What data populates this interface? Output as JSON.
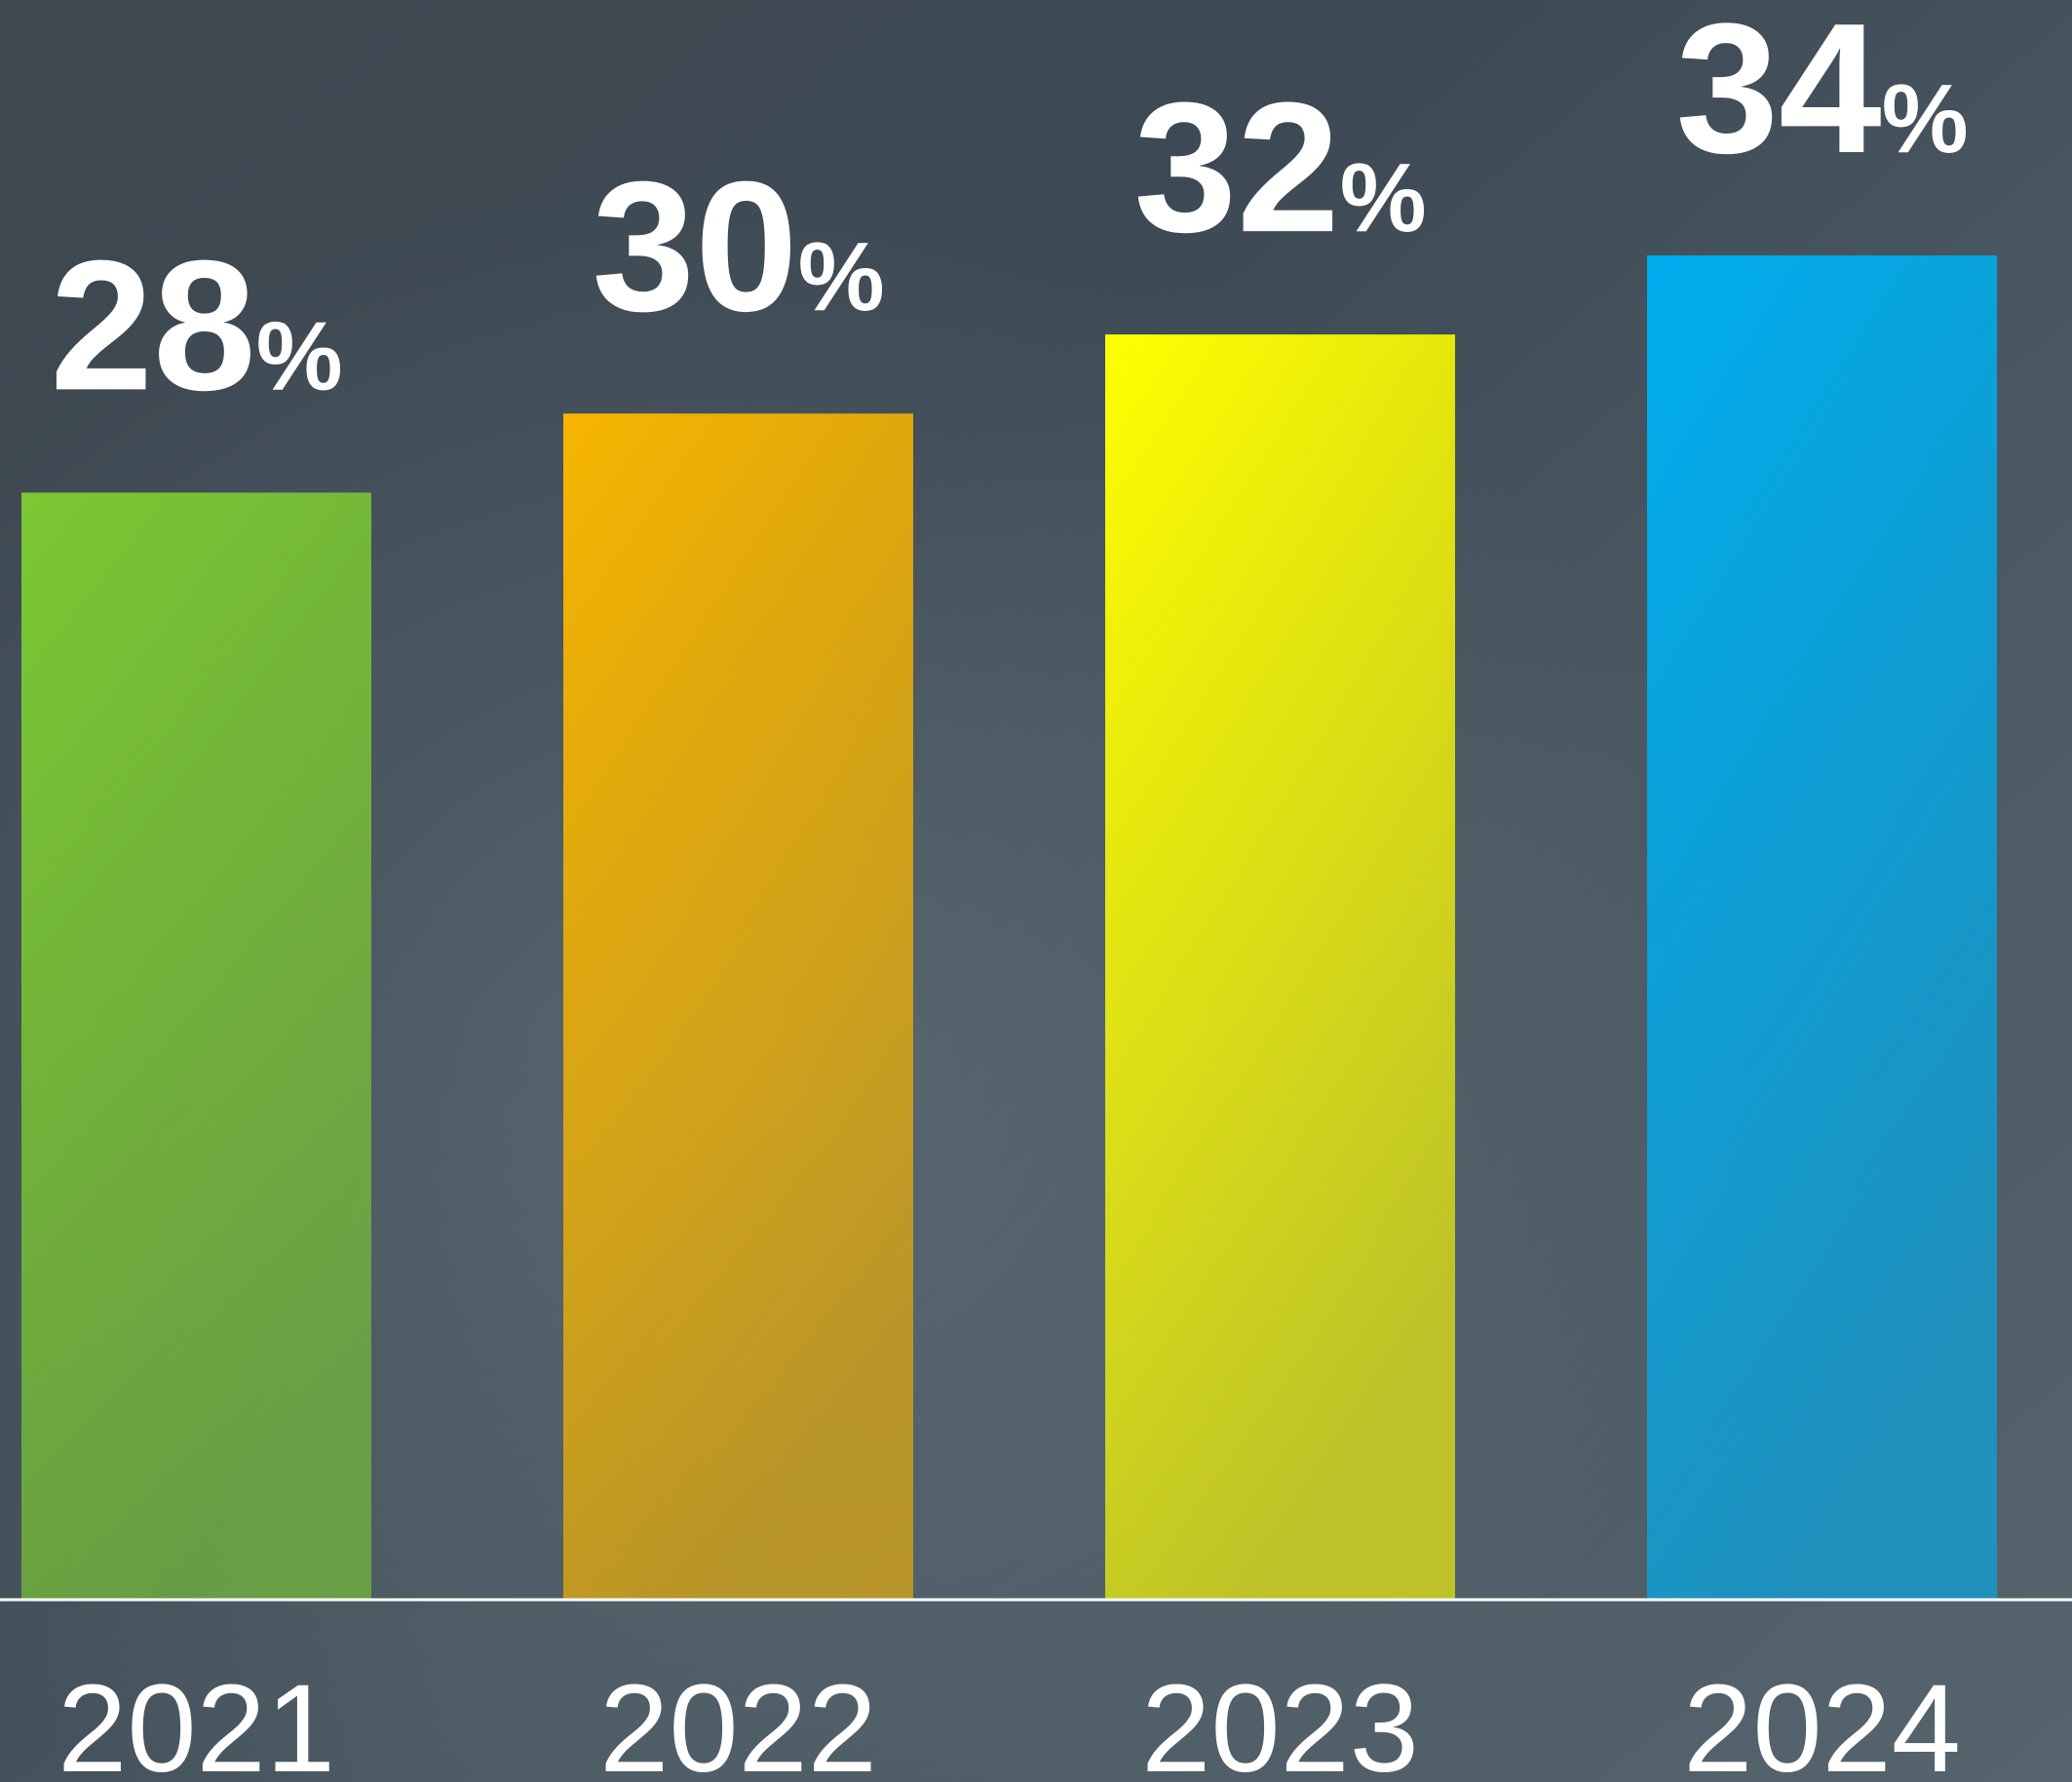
{
  "chart_data": {
    "type": "bar",
    "categories": [
      "2021",
      "2022",
      "2023",
      "2024"
    ],
    "values": [
      28,
      30,
      32,
      34
    ],
    "value_labels": [
      "28%",
      "30%",
      "32%",
      "34%"
    ],
    "colors": [
      "#7cc832",
      "#f7b500",
      "#ffff00",
      "#00aeef"
    ]
  }
}
